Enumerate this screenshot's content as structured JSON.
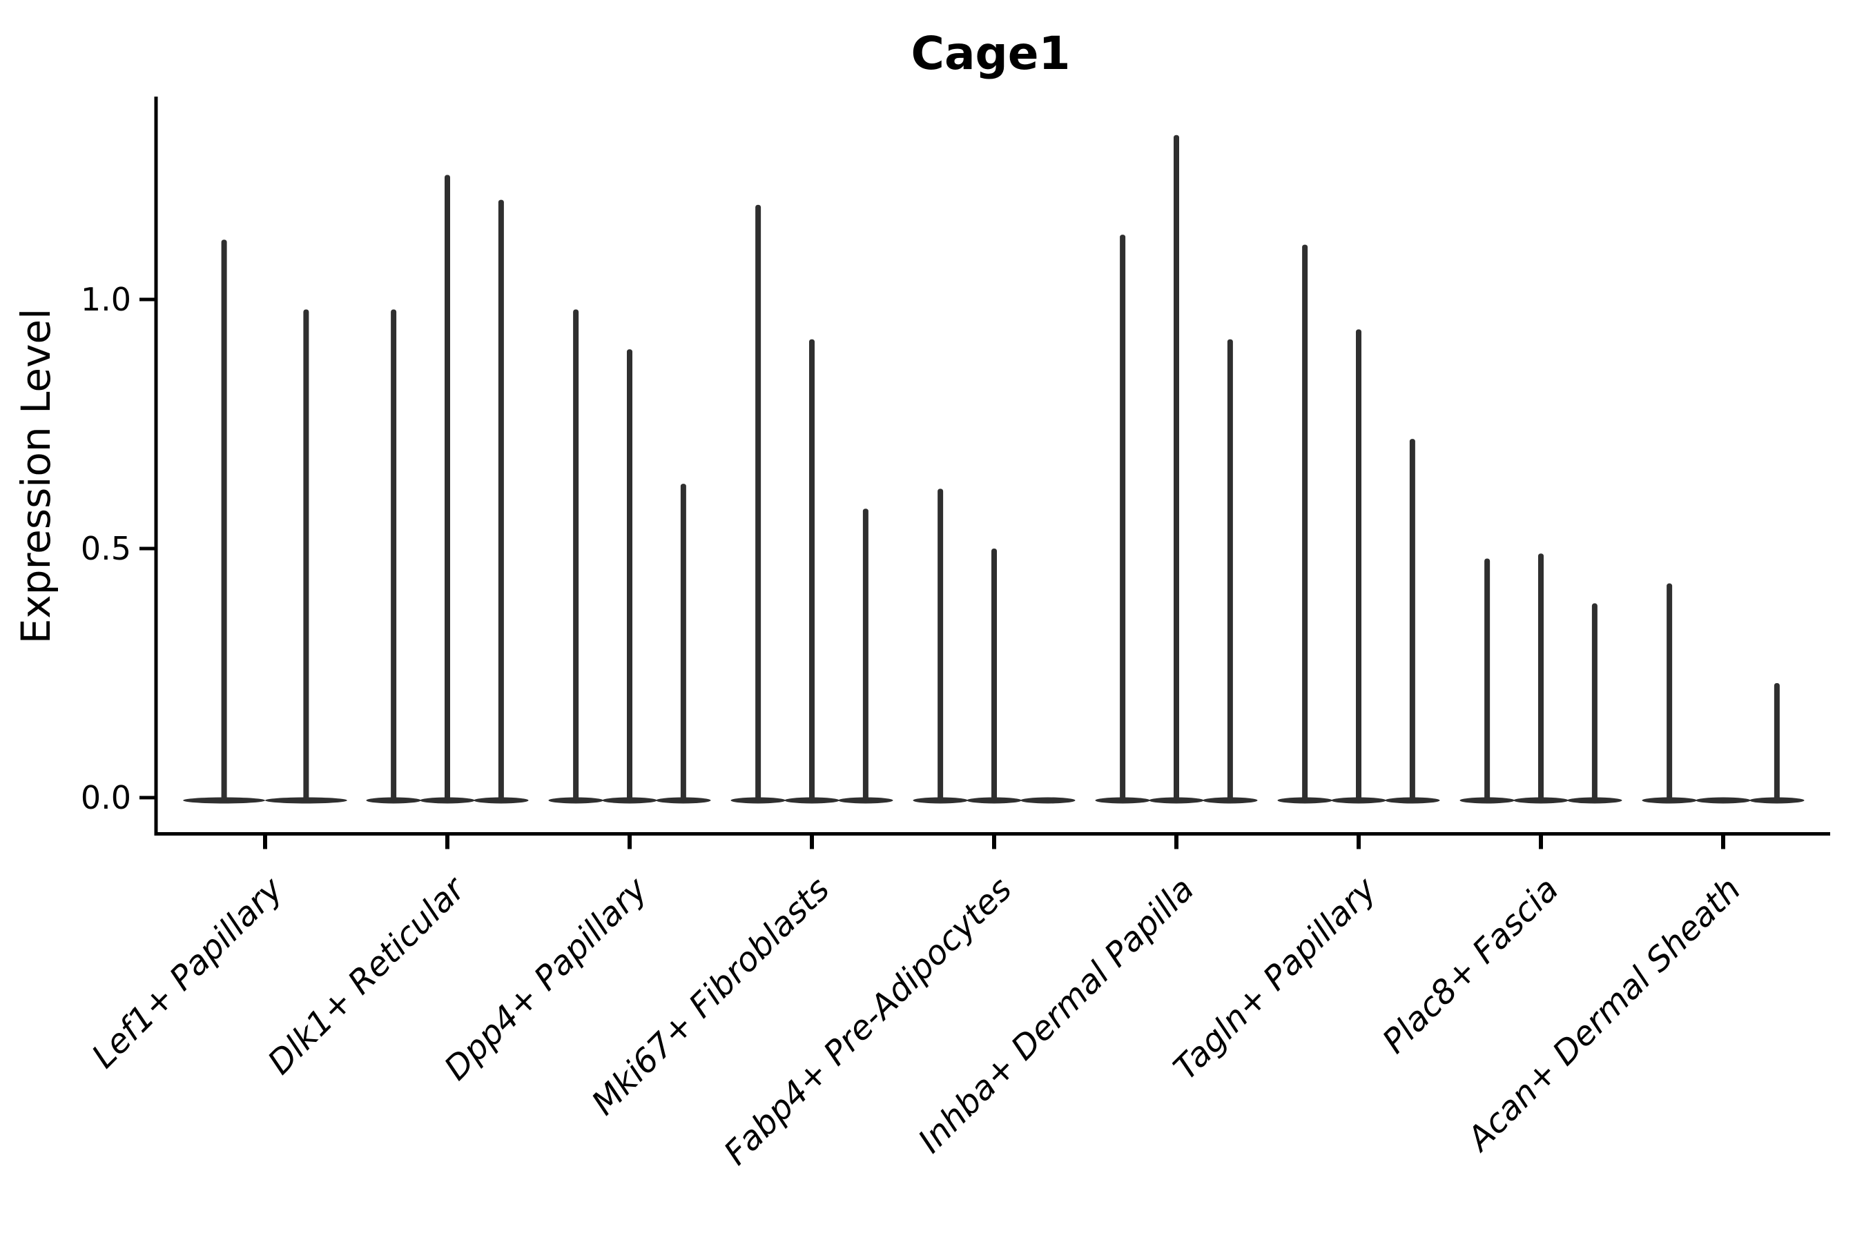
{
  "figure": {
    "title": "Cage1",
    "ylabel": "Expression Level",
    "background": "#ffffff",
    "violin_color": "#2f2f2f",
    "axis_color": "#000000"
  },
  "chart_data": {
    "type": "violin",
    "title": "Cage1",
    "xlabel": "",
    "ylabel": "Expression Level",
    "ylim": [
      -0.07,
      1.41
    ],
    "ytick_values": [
      0.0,
      0.5,
      1.0
    ],
    "ytick_labels": [
      "0.0",
      "0.5",
      "1.0"
    ],
    "grid": false,
    "legend": "none",
    "categories": [
      "Lef1+ Papillary",
      "Dlk1+ Reticular",
      "Dpp4+ Papillary",
      "Mki67+ Fibroblasts",
      "Fabp4+ Pre-Adipocytes",
      "Inhba+ Dermal Papilla",
      "Tagln+ Papillary",
      "Plac8+ Fascia",
      "Acan+ Dermal Sheath"
    ],
    "groups": [
      {
        "category": "Lef1+ Papillary",
        "violin_width": 0.45,
        "offsets": [
          -0.225,
          0.225
        ],
        "max_values": [
          1.12,
          0.98
        ]
      },
      {
        "category": "Dlk1+ Reticular",
        "violin_width": 0.3,
        "offsets": [
          -0.295,
          0,
          0.295
        ],
        "max_values": [
          0.98,
          1.25,
          1.2
        ]
      },
      {
        "category": "Dpp4+ Papillary",
        "violin_width": 0.3,
        "offsets": [
          -0.295,
          0,
          0.295
        ],
        "max_values": [
          0.98,
          0.9,
          0.63
        ]
      },
      {
        "category": "Mki67+ Fibroblasts",
        "violin_width": 0.3,
        "offsets": [
          -0.295,
          0,
          0.295
        ],
        "max_values": [
          1.19,
          0.92,
          0.58
        ]
      },
      {
        "category": "Fabp4+ Pre-Adipocytes",
        "violin_width": 0.3,
        "offsets": [
          -0.295,
          0,
          0.295
        ],
        "max_values": [
          0.62,
          0.5,
          0.0
        ]
      },
      {
        "category": "Inhba+ Dermal Papilla",
        "violin_width": 0.3,
        "offsets": [
          -0.295,
          0,
          0.295
        ],
        "max_values": [
          1.13,
          1.33,
          0.92
        ]
      },
      {
        "category": "Tagln+ Papillary",
        "violin_width": 0.3,
        "offsets": [
          -0.295,
          0,
          0.295
        ],
        "max_values": [
          1.11,
          0.94,
          0.72
        ]
      },
      {
        "category": "Plac8+ Fascia",
        "violin_width": 0.3,
        "offsets": [
          -0.295,
          0,
          0.295
        ],
        "max_values": [
          0.48,
          0.49,
          0.39
        ]
      },
      {
        "category": "Acan+ Dermal Sheath",
        "violin_width": 0.3,
        "offsets": [
          -0.295,
          0,
          0.295
        ],
        "max_values": [
          0.43,
          0.0,
          0.23
        ]
      }
    ]
  }
}
